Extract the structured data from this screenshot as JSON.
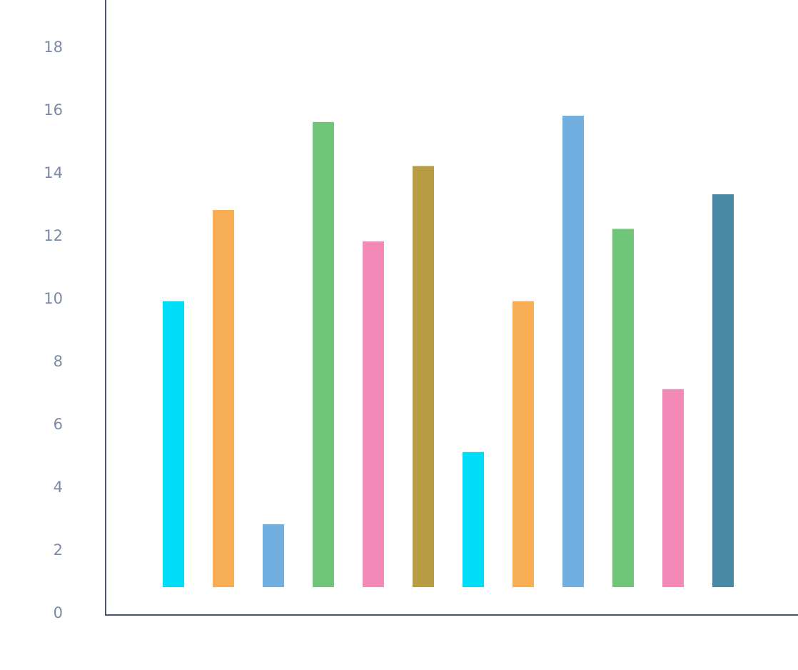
{
  "chart_data": {
    "type": "bar",
    "title": "",
    "xlabel": "",
    "ylabel": "",
    "ylim": [
      0,
      18
    ],
    "yticks": [
      0,
      2,
      4,
      6,
      8,
      10,
      12,
      14,
      16,
      18
    ],
    "grid": false,
    "legend": "none",
    "values": [
      9.1,
      12.0,
      2.0,
      14.8,
      11.0,
      13.4,
      4.3,
      9.1,
      15.0,
      11.4,
      6.3,
      12.5
    ],
    "colors": [
      "#00ddf9",
      "#f8ae54",
      "#70afdf",
      "#70c678",
      "#f389b6",
      "#b99d45",
      "#00ddf9",
      "#f8ae54",
      "#70afdf",
      "#70c678",
      "#f389b6",
      "#4a89a6"
    ],
    "axis_color": "#4a5670",
    "tick_color": "#7a8aa6"
  }
}
